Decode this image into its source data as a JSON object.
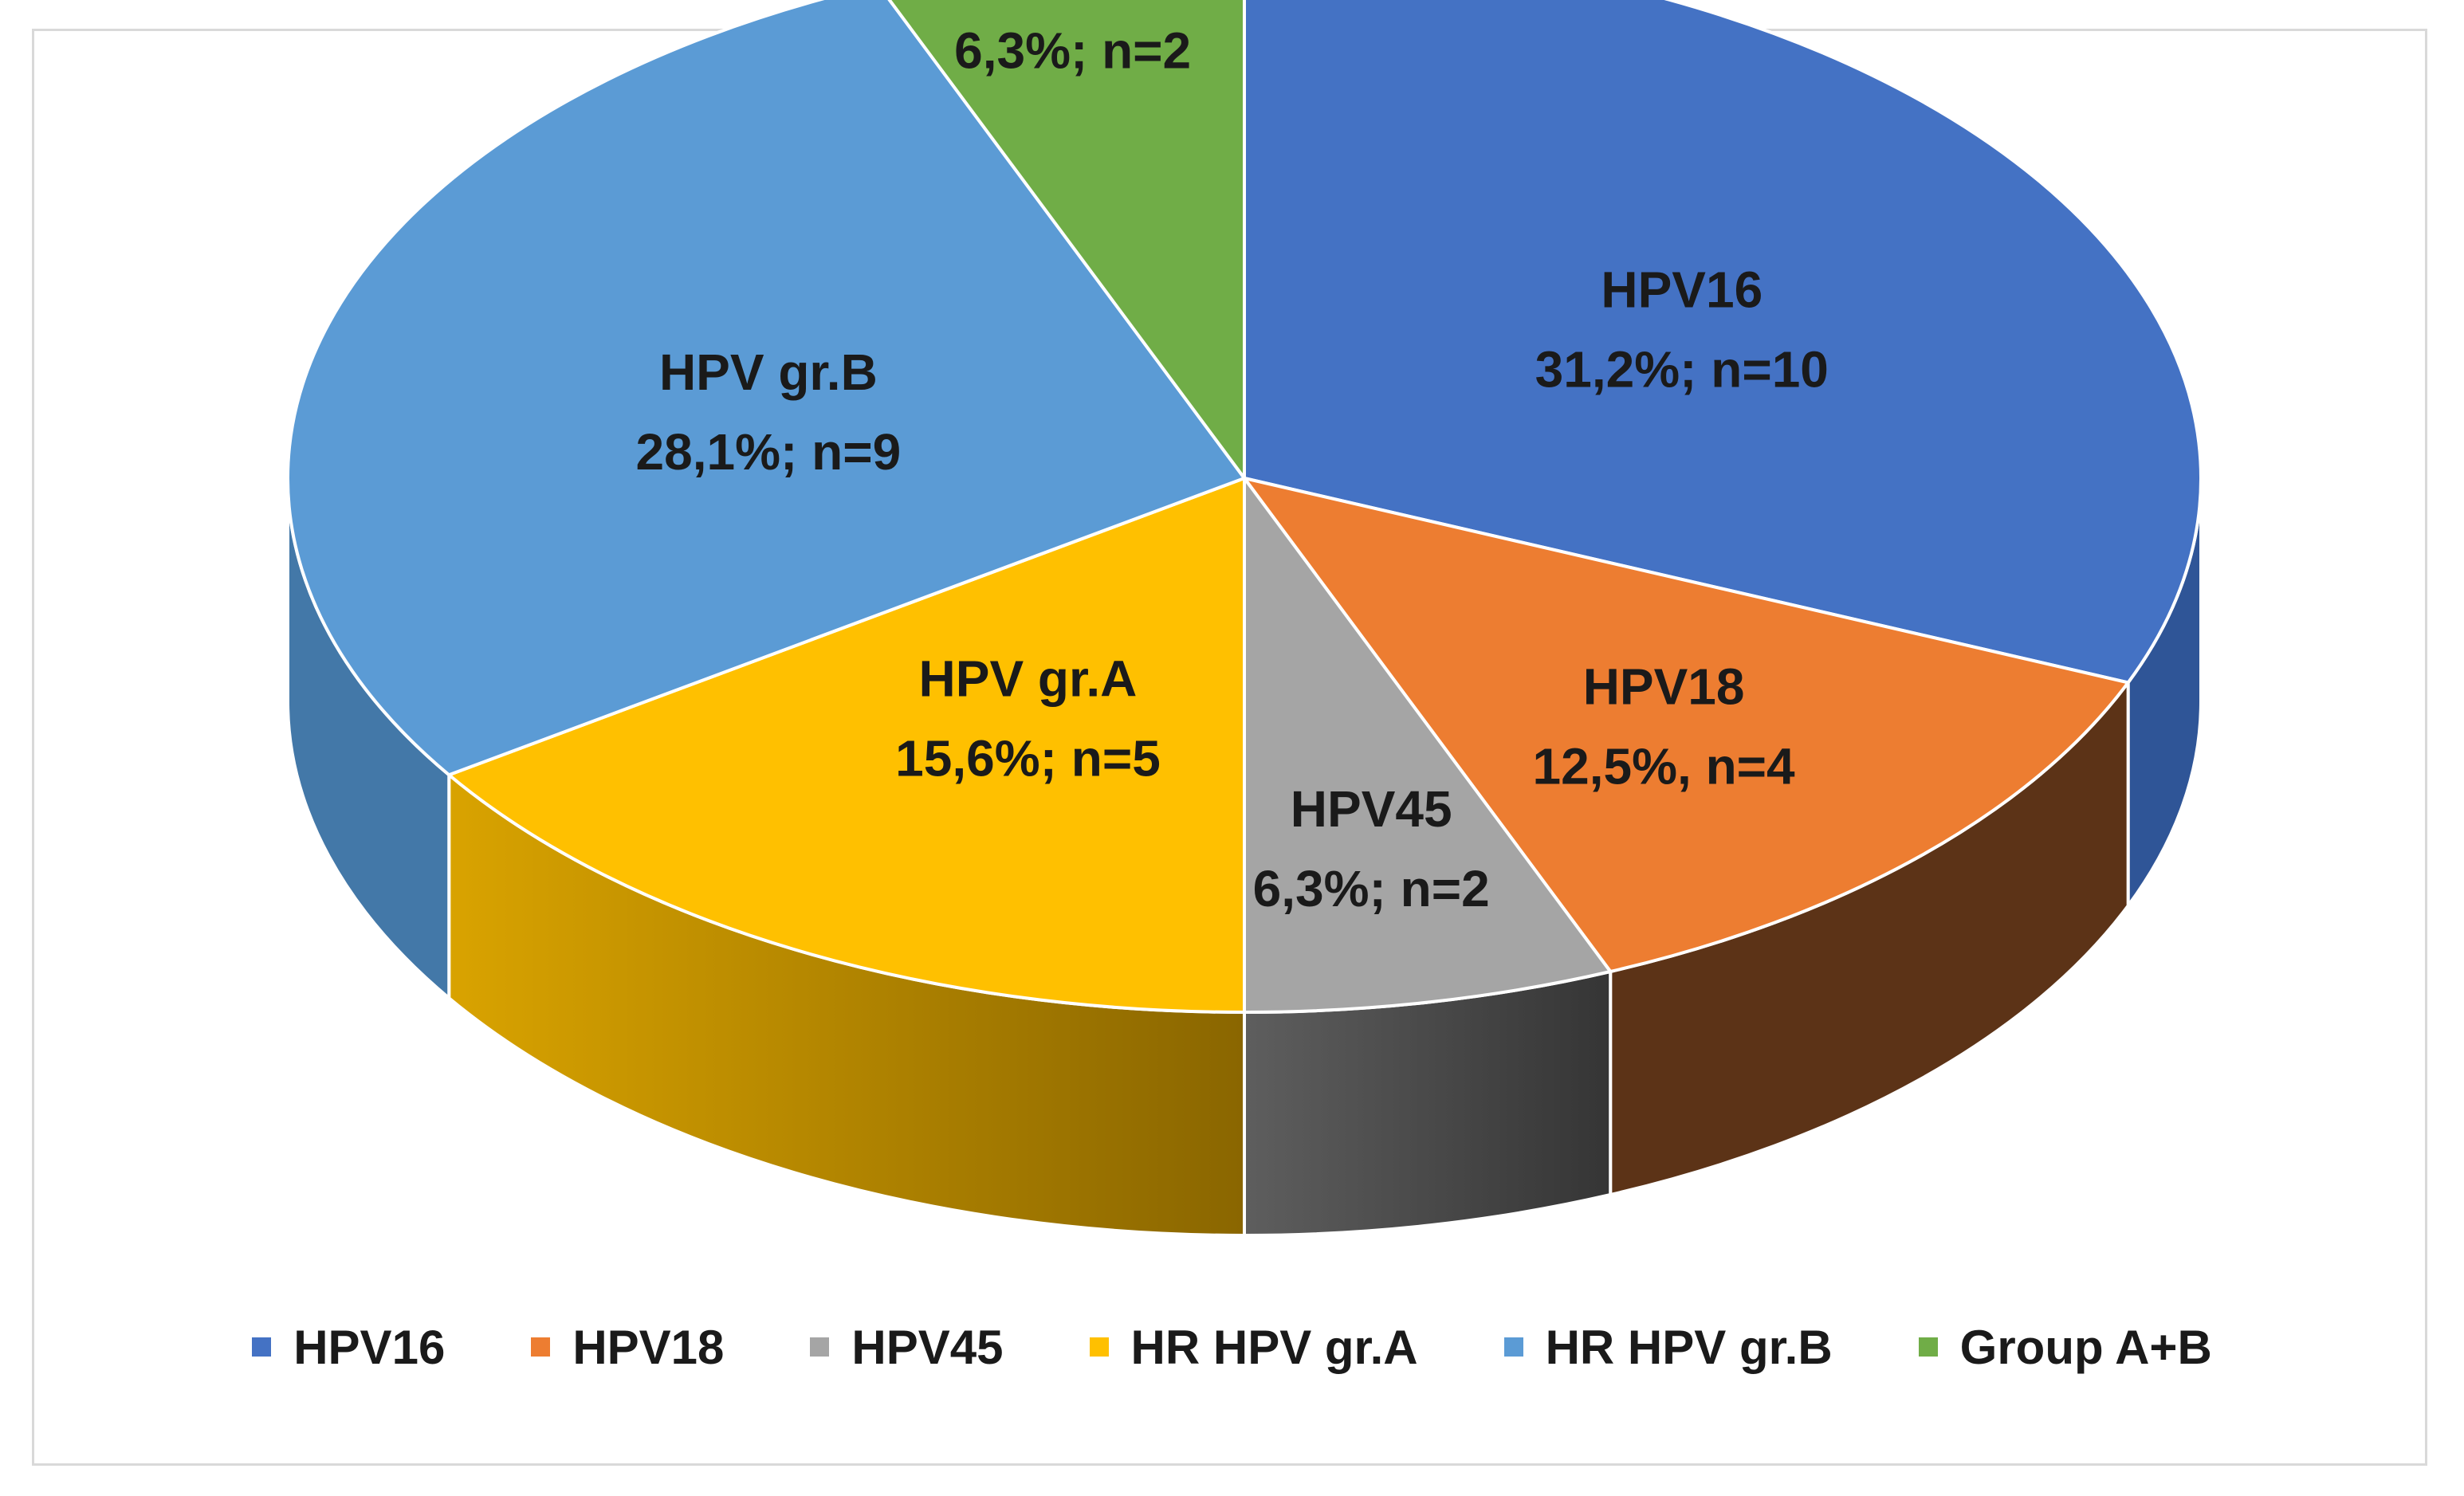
{
  "chart_data": {
    "type": "pie",
    "style": "3d",
    "categories": [
      "HPV16",
      "HPV18",
      "HPV45",
      "HR HPV gr.A",
      "HR HPV gr.B",
      "Group A+B"
    ],
    "values": [
      10,
      4,
      2,
      5,
      9,
      2
    ],
    "percent": [
      31.2,
      12.5,
      6.3,
      15.6,
      28.1,
      6.3
    ],
    "colors": [
      "#4472C4",
      "#ED7D31",
      "#A5A5A5",
      "#FFC000",
      "#5B9BD5",
      "#70AD47"
    ],
    "side_colors": [
      "#2F5597",
      "#5C3317",
      "#4A4A4A",
      "#A07A00",
      "#4378A8",
      "#4E7A33"
    ],
    "data_labels": [
      {
        "name": "HPV16",
        "value": "31,2%; n=10"
      },
      {
        "name": "HPV18",
        "value": "12,5%, n=4"
      },
      {
        "name": "HPV45",
        "value": "6,3%; n=2"
      },
      {
        "name": "HPV gr.A",
        "value": "15,6%; n=5"
      },
      {
        "name": "HPV gr.B",
        "value": "28,1%; n=9"
      },
      {
        "name": "Group A+B",
        "value": "6,3%; n=2"
      }
    ],
    "legend": {
      "position": "bottom",
      "entries": [
        "HPV16",
        "HPV18",
        "HPV45",
        "HR HPV gr.A",
        "HR HPV gr.B",
        "Group A+B"
      ]
    }
  }
}
